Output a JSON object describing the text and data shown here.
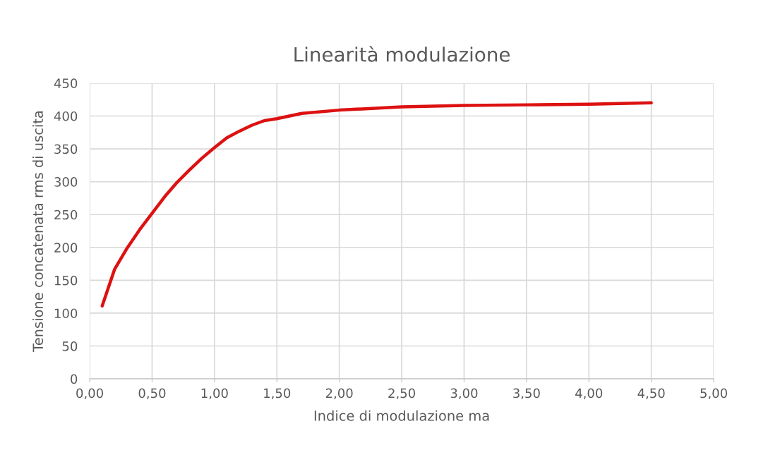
{
  "chart_data": {
    "type": "line",
    "title": "Linearità modulazione",
    "xlabel": "Indice di modulazione ma",
    "ylabel": "Tensione concatenata rms di uscita",
    "x": [
      0.1,
      0.2,
      0.3,
      0.4,
      0.5,
      0.6,
      0.7,
      0.8,
      0.9,
      1.0,
      1.1,
      1.2,
      1.3,
      1.4,
      1.5,
      1.6,
      1.7,
      2.0,
      2.5,
      3.0,
      3.5,
      4.0,
      4.5
    ],
    "series": [
      {
        "color": "#dd1111",
        "values": [
          111,
          167,
          199,
          227,
          252,
          277,
          299,
          318,
          336,
          352,
          367,
          377,
          386,
          393,
          396,
          400,
          404,
          409,
          414,
          416,
          417,
          418,
          420
        ]
      }
    ],
    "xlim": [
      0,
      5
    ],
    "ylim": [
      0,
      450
    ],
    "xticks": [
      {
        "value": 0,
        "label": "0,00"
      },
      {
        "value": 0.5,
        "label": "0,50"
      },
      {
        "value": 1,
        "label": "1,00"
      },
      {
        "value": 1.5,
        "label": "1,50"
      },
      {
        "value": 2,
        "label": "2,00"
      },
      {
        "value": 2.5,
        "label": "2,50"
      },
      {
        "value": 3,
        "label": "3,00"
      },
      {
        "value": 3.5,
        "label": "3,50"
      },
      {
        "value": 4,
        "label": "4,00"
      },
      {
        "value": 4.5,
        "label": "4,50"
      },
      {
        "value": 5,
        "label": "5,00"
      }
    ],
    "yticks": [
      0,
      50,
      100,
      150,
      200,
      250,
      300,
      350,
      400,
      450
    ],
    "grid": true,
    "marker": "none",
    "line_style": "solid"
  }
}
